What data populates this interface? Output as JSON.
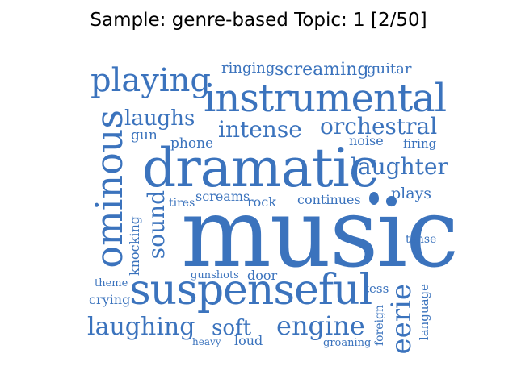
{
  "title": "Sample: genre-based Topic: 1 [2/50]",
  "word_color": "#3b73bd",
  "words": {
    "music": "music",
    "dramatic": "dramatic",
    "instrumental": "instrumental",
    "suspenseful": "suspenseful",
    "ominous": "ominous",
    "playing": "playing",
    "laughing": "laughing",
    "engine": "engine",
    "eerie": "eerie",
    "intense": "intense",
    "orchestral": "orchestral",
    "laughter": "laughter",
    "laughs": "laughs",
    "sound": "sound",
    "soft": "soft",
    "screaming": "screaming",
    "ringing": "ringing",
    "guitar": "guitar",
    "gun": "gun",
    "phone": "phone",
    "noise": "noise",
    "firing": "firing",
    "tires": "tires",
    "screams": "screams",
    "rock": "rock",
    "continues": "continues",
    "plays": "plays",
    "knocking": "knocking",
    "tense": "tense",
    "gunshots": "gunshots",
    "door": "door",
    "theme": "theme",
    "crying": "crying",
    "tess": "tess",
    "foreign": "foreign",
    "language": "language",
    "heavy": "heavy",
    "loud": "loud",
    "groaning": "groaning"
  }
}
